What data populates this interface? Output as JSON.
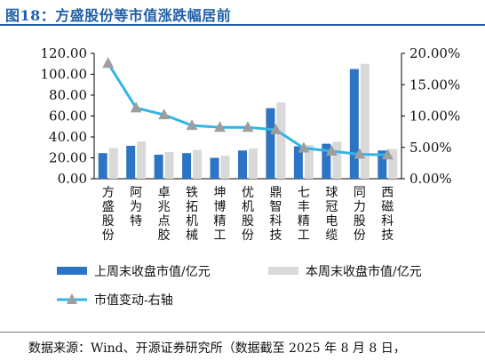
{
  "header": {
    "title": "图18：方盛股份等市值涨跌幅居前"
  },
  "footer": {
    "source": "数据来源：Wind、开源证券研究所（数据截至 2025 年 8 月 8 日，"
  },
  "colors": {
    "title": "#1f5fa8",
    "series_dark": "#2e74c4",
    "series_light": "#d9d9d9",
    "line": "#33b4e6",
    "marker": "#9e9e9e"
  },
  "chart_data": {
    "type": "bar",
    "categories": [
      "方盛股份",
      "阿为特",
      "卓兆点胶",
      "铁拓机械",
      "坤博精工",
      "优机股份",
      "鼎智科技",
      "七丰精工",
      "球冠电缆",
      "同力股份",
      "西磁科技"
    ],
    "series": [
      {
        "name": "上周末收盘市值/亿元",
        "type": "bar",
        "axis": "left",
        "values": [
          24.5,
          31.5,
          23.0,
          24.5,
          20.0,
          27.0,
          67.5,
          31.0,
          33.5,
          105.0,
          27.0
        ]
      },
      {
        "name": "本周末收盘市值/亿元",
        "type": "bar",
        "axis": "left",
        "values": [
          29.5,
          35.5,
          25.5,
          27.5,
          22.0,
          29.0,
          73.0,
          32.5,
          35.5,
          110.0,
          28.5
        ]
      },
      {
        "name": "市值变动-右轴",
        "type": "line",
        "axis": "right",
        "values": [
          18.4,
          11.3,
          10.2,
          8.5,
          8.2,
          8.2,
          7.8,
          4.9,
          4.4,
          3.9,
          3.8
        ]
      }
    ],
    "y_left": {
      "min": 0,
      "max": 120,
      "ticks": [
        "0.00",
        "20.00",
        "40.00",
        "60.00",
        "80.00",
        "100.00",
        "120.00"
      ]
    },
    "y_right": {
      "min": 0,
      "max": 20,
      "ticks": [
        "0.00%",
        "5.00%",
        "10.00%",
        "15.00%",
        "20.00%"
      ]
    },
    "grid": false,
    "legend_position": "bottom"
  }
}
